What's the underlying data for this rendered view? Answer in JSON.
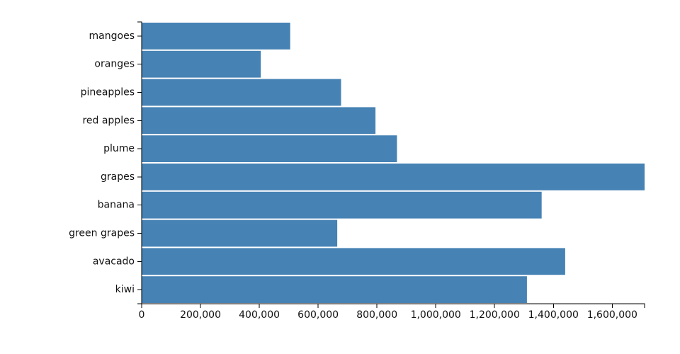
{
  "chart_data": {
    "type": "bar",
    "orientation": "horizontal",
    "title": "",
    "xlabel": "",
    "ylabel": "",
    "categories": [
      "mangoes",
      "oranges",
      "pineapples",
      "red apples",
      "plume",
      "grapes",
      "banana",
      "green grapes",
      "avacado",
      "kiwi"
    ],
    "values": [
      505000,
      405000,
      678000,
      795000,
      868000,
      1710000,
      1360000,
      665000,
      1440000,
      1310000
    ],
    "xlim": [
      0,
      1710000
    ],
    "xticks": [
      0,
      200000,
      400000,
      600000,
      800000,
      1000000,
      1200000,
      1400000,
      1600000
    ],
    "xtick_labels": [
      "0",
      "200,000",
      "400,000",
      "600,000",
      "800,000",
      "1,000,000",
      "1,200,000",
      "1,400,000",
      "1,600,000"
    ],
    "bar_color": "#4682b4",
    "grid": false,
    "legend": "none"
  }
}
